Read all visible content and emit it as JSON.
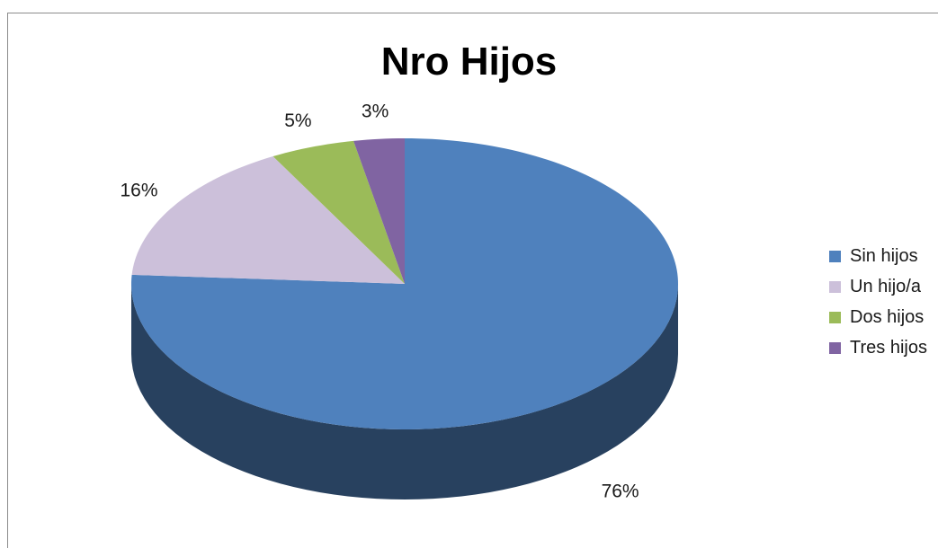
{
  "chart_data": {
    "type": "pie",
    "style": "3d",
    "title": "Nro Hijos",
    "categories": [
      "Sin hijos",
      "Un hijo/a",
      "Dos hijos",
      "Tres hijos"
    ],
    "values": [
      76,
      16,
      5,
      3
    ],
    "labels": [
      "76%",
      "16%",
      "5%",
      "3%"
    ],
    "colors": [
      "#4f81bd",
      "#ccc0da",
      "#9bbb59",
      "#8064a2"
    ],
    "legend_position": "right"
  }
}
